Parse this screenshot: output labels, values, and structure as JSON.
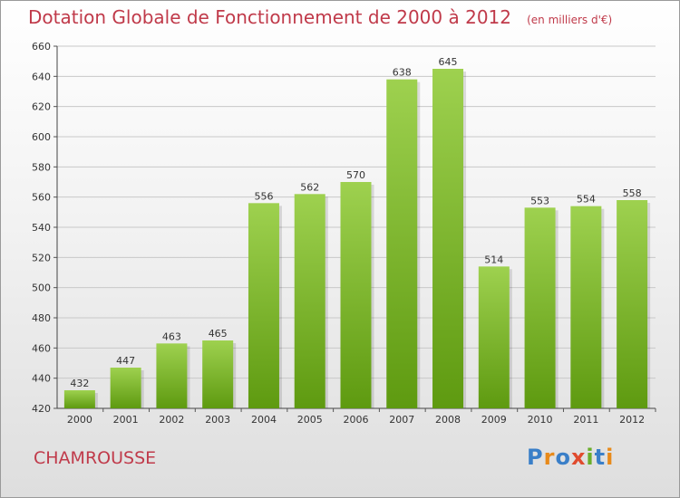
{
  "header": {
    "title": "Dotation Globale de Fonctionnement de 2000 à 2012",
    "unit": "(en milliers d'€)"
  },
  "footer": {
    "town": "CHAMROUSSE",
    "logo_letters": [
      {
        "ch": "P",
        "color": "#3a7fc8"
      },
      {
        "ch": "r",
        "color": "#e88a1a"
      },
      {
        "ch": "o",
        "color": "#3a7fc8"
      },
      {
        "ch": "x",
        "color": "#e04b2e"
      },
      {
        "ch": "i",
        "color": "#6aae2a"
      },
      {
        "ch": "t",
        "color": "#3a7fc8"
      },
      {
        "ch": "i",
        "color": "#e88a1a"
      }
    ]
  },
  "colors": {
    "title": "#c03a4a",
    "bar_top": "#9ed14f",
    "bar_bottom": "#5e9a10",
    "grid": "#c8c8c8"
  },
  "chart_data": {
    "type": "bar",
    "title": "Dotation Globale de Fonctionnement de 2000 à 2012",
    "subtitle": "(en milliers d'€)",
    "categories": [
      "2000",
      "2001",
      "2002",
      "2003",
      "2004",
      "2005",
      "2006",
      "2007",
      "2008",
      "2009",
      "2010",
      "2011",
      "2012"
    ],
    "values": [
      432,
      447,
      463,
      465,
      556,
      562,
      570,
      638,
      645,
      514,
      553,
      554,
      558
    ],
    "ylim": [
      420,
      660
    ],
    "yticks": [
      420,
      440,
      460,
      480,
      500,
      520,
      540,
      560,
      580,
      600,
      620,
      640,
      660
    ],
    "grid": true,
    "data_labels": true
  }
}
